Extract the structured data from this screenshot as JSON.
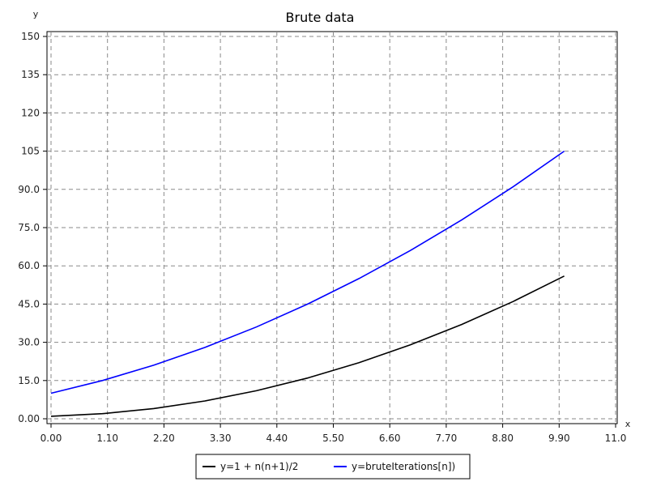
{
  "chart_data": {
    "type": "line",
    "title": "Brute data",
    "xlabel": "x",
    "ylabel": "y",
    "xlim": [
      0,
      11
    ],
    "ylim": [
      0,
      150
    ],
    "xticks": [
      "0.00",
      "1.10",
      "2.20",
      "3.30",
      "4.40",
      "5.50",
      "6.60",
      "7.70",
      "8.80",
      "9.90",
      "11.0"
    ],
    "yticks": [
      "0.00",
      "15.0",
      "30.0",
      "45.0",
      "60.0",
      "75.0",
      "90.0",
      "105",
      "120",
      "135",
      "150"
    ],
    "grid": true,
    "legend_position": "bottom",
    "series": [
      {
        "name": "y=1 + n(n+1)/2",
        "color": "#000000",
        "x": [
          0,
          1,
          2,
          3,
          4,
          5,
          6,
          7,
          8,
          9,
          10
        ],
        "y": [
          1,
          2,
          4,
          7,
          11,
          16,
          22,
          29,
          37,
          46,
          56
        ]
      },
      {
        "name": "y=bruteIterations[n])",
        "color": "#0000ff",
        "x": [
          0,
          1,
          2,
          3,
          4,
          5,
          6,
          7,
          8,
          9,
          10
        ],
        "y": [
          10,
          15,
          21,
          28,
          36,
          45,
          55,
          66,
          78,
          91,
          105
        ]
      }
    ]
  }
}
